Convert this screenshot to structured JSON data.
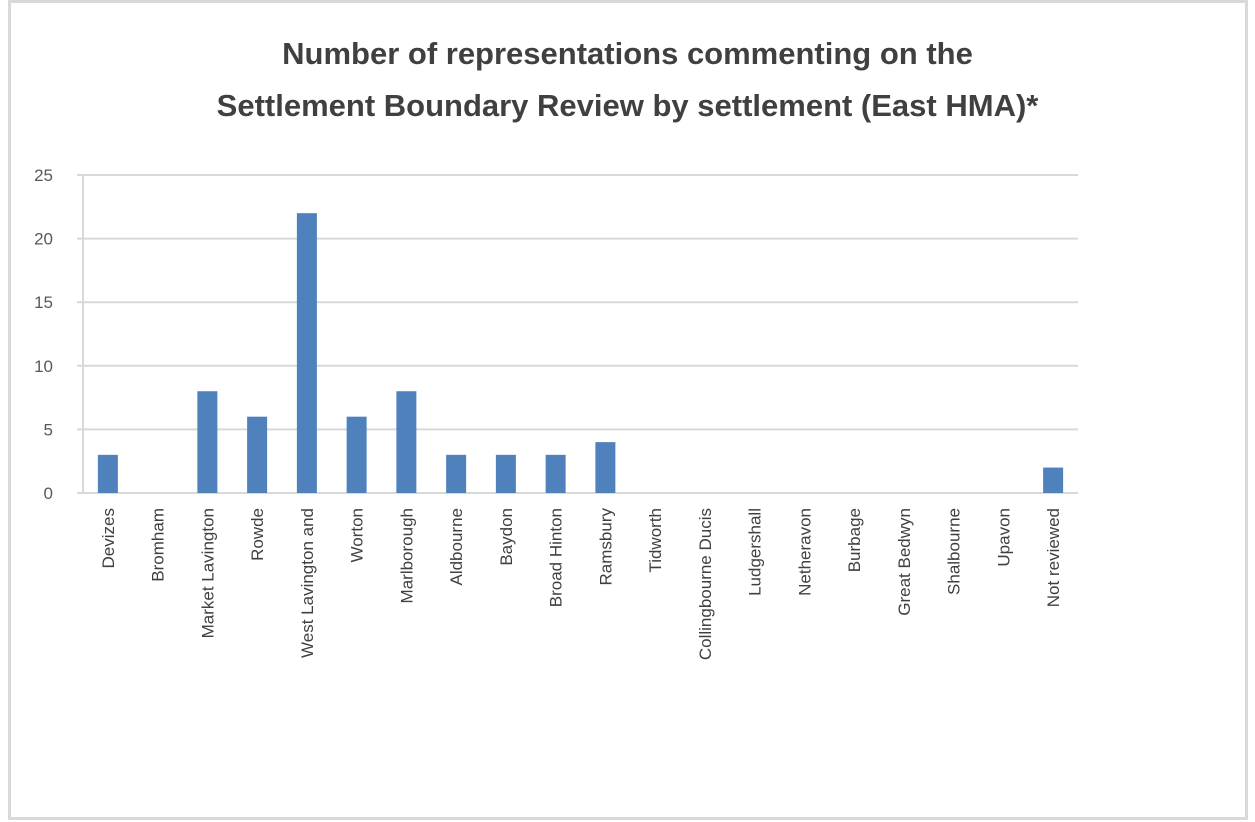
{
  "chart_data": {
    "type": "bar",
    "title_lines": [
      "Number of representations commenting on the",
      "Settlement Boundary Review by settlement (East HMA)*"
    ],
    "categories": [
      "Devizes",
      "Bromham",
      "Market Lavington",
      "Rowde",
      "West Lavington and",
      "Worton",
      "Marlborough",
      "Aldbourne",
      "Baydon",
      "Broad Hinton",
      "Ramsbury",
      "Tidworth",
      "Collingbourne Ducis",
      "Ludgershall",
      "Netheravon",
      "Burbage",
      "Great Bedwyn",
      "Shalbourne",
      "Upavon",
      "Not reviewed"
    ],
    "values": [
      3,
      0,
      8,
      6,
      22,
      6,
      8,
      3,
      3,
      3,
      4,
      0,
      0,
      0,
      0,
      0,
      0,
      0,
      0,
      2
    ],
    "ylim": [
      0,
      25
    ],
    "yticks": [
      0,
      5,
      10,
      15,
      20,
      25
    ],
    "grid": true,
    "bar_color": "#4f81bd",
    "grid_color": "#d9d9d9"
  }
}
